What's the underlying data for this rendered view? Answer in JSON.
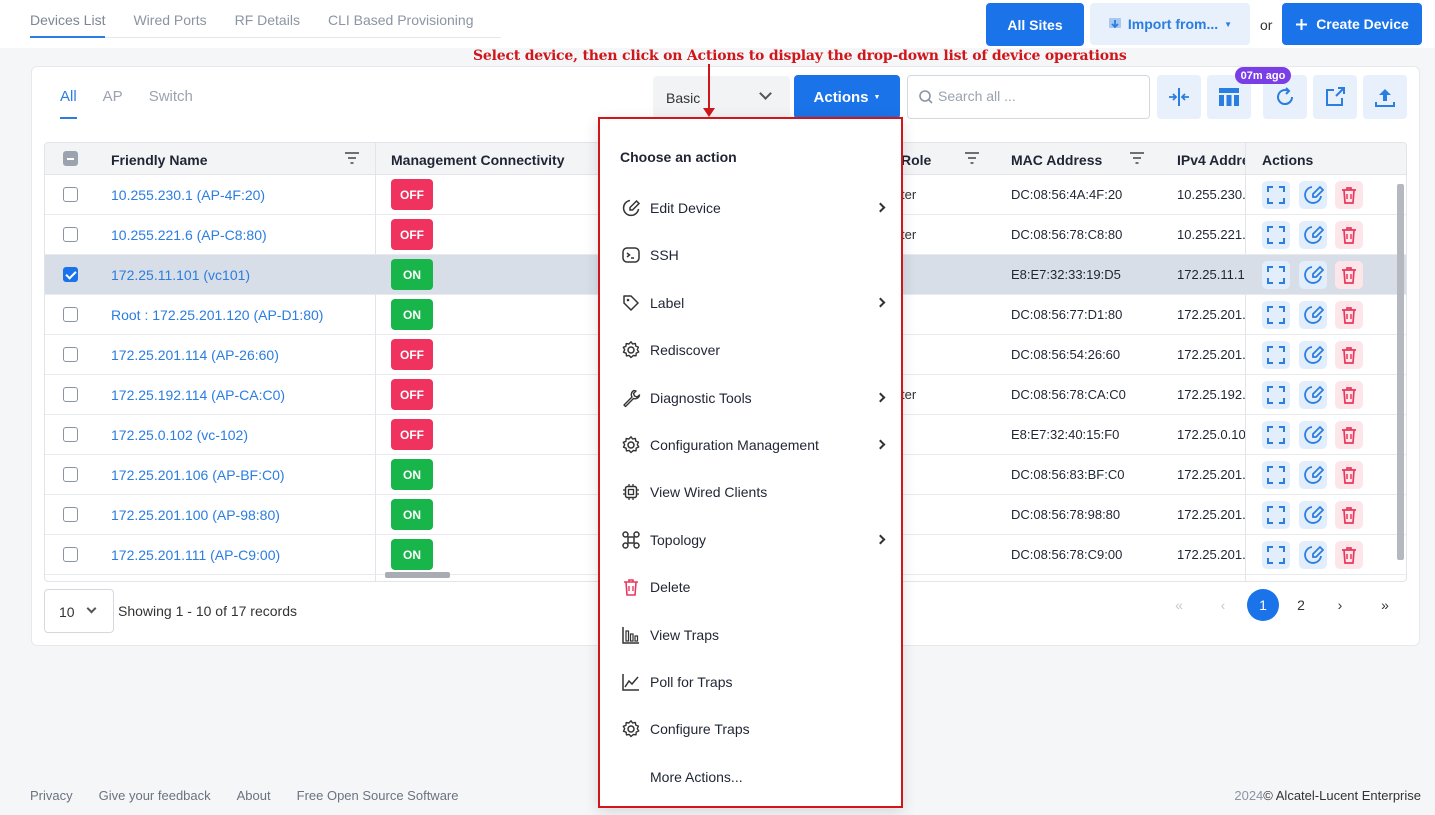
{
  "page_tabs": [
    "Devices List",
    "Wired Ports",
    "RF Details",
    "CLI Based Provisioning"
  ],
  "header": {
    "all_sites": "All Sites",
    "import_from": "Import from...",
    "or": "or",
    "create_device": "Create Device"
  },
  "annotation": "Select device, then click on Actions to display the drop-down list of device operations",
  "filter_tabs": [
    "All",
    "AP",
    "Switch"
  ],
  "toolbar": {
    "view_select": "Basic",
    "actions": "Actions",
    "search_placeholder": "Search all ...",
    "refresh_badge": "07m ago"
  },
  "table": {
    "headers": {
      "friendly_name": "Friendly Name",
      "management_connectivity": "Management Connectivity",
      "role": "Role",
      "mac_address": "MAC Address",
      "ipv4_address": "IPv4 Addre",
      "actions": "Actions"
    },
    "rows": [
      {
        "name": "10.255.230.1 (AP-4F:20)",
        "status": "OFF",
        "role": "ter",
        "mac": "DC:08:56:4A:4F:20",
        "ipv4": "10.255.230.",
        "checked": false
      },
      {
        "name": "10.255.221.6 (AP-C8:80)",
        "status": "OFF",
        "role": "ter",
        "mac": "DC:08:56:78:C8:80",
        "ipv4": "10.255.221.",
        "checked": false
      },
      {
        "name": "172.25.11.101 (vc101)",
        "status": "ON",
        "role": "",
        "mac": "E8:E7:32:33:19:D5",
        "ipv4": "172.25.11.1",
        "checked": true
      },
      {
        "name": "Root : 172.25.201.120 (AP-D1:80)",
        "status": "ON",
        "role": "",
        "mac": "DC:08:56:77:D1:80",
        "ipv4": "172.25.201.",
        "checked": false
      },
      {
        "name": "172.25.201.114 (AP-26:60)",
        "status": "OFF",
        "role": "",
        "mac": "DC:08:56:54:26:60",
        "ipv4": "172.25.201.",
        "checked": false
      },
      {
        "name": "172.25.192.114 (AP-CA:C0)",
        "status": "OFF",
        "role": "ter",
        "mac": "DC:08:56:78:CA:C0",
        "ipv4": "172.25.192.",
        "checked": false
      },
      {
        "name": "172.25.0.102 (vc-102)",
        "status": "OFF",
        "role": "",
        "mac": "E8:E7:32:40:15:F0",
        "ipv4": "172.25.0.10",
        "checked": false
      },
      {
        "name": "172.25.201.106 (AP-BF:C0)",
        "status": "ON",
        "role": "",
        "mac": "DC:08:56:83:BF:C0",
        "ipv4": "172.25.201.",
        "checked": false
      },
      {
        "name": "172.25.201.100 (AP-98:80)",
        "status": "ON",
        "role": "",
        "mac": "DC:08:56:78:98:80",
        "ipv4": "172.25.201.",
        "checked": false
      },
      {
        "name": "172.25.201.111 (AP-C9:00)",
        "status": "ON",
        "role": "",
        "mac": "DC:08:56:78:C9:00",
        "ipv4": "172.25.201.",
        "checked": false
      }
    ]
  },
  "pagination": {
    "page_size": "10",
    "records": "Showing 1 - 10 of 17 records",
    "pages": [
      "1",
      "2"
    ],
    "current": "1"
  },
  "dropdown": {
    "title": "Choose an action",
    "items": [
      {
        "label": "Edit Device",
        "icon": "edit-device-icon",
        "submenu": true
      },
      {
        "label": "SSH",
        "icon": "terminal-icon",
        "submenu": false
      },
      {
        "label": "Label",
        "icon": "tag-icon",
        "submenu": true
      },
      {
        "label": "Rediscover",
        "icon": "gear-icon",
        "submenu": false
      },
      {
        "label": "Diagnostic Tools",
        "icon": "wrench-icon",
        "submenu": true
      },
      {
        "label": "Configuration Management",
        "icon": "gear-icon",
        "submenu": true
      },
      {
        "label": "View Wired Clients",
        "icon": "chip-icon",
        "submenu": false
      },
      {
        "label": "Topology",
        "icon": "topology-icon",
        "submenu": true
      },
      {
        "label": "Delete",
        "icon": "trash-icon",
        "submenu": false
      },
      {
        "label": "View Traps",
        "icon": "bar-chart-icon",
        "submenu": false
      },
      {
        "label": "Poll for Traps",
        "icon": "line-chart-icon",
        "submenu": false
      },
      {
        "label": "Configure Traps",
        "icon": "gear-icon",
        "submenu": false
      },
      {
        "label": "More Actions...",
        "icon": "",
        "submenu": false
      }
    ]
  },
  "footer": {
    "links": [
      "Privacy",
      "Give your feedback",
      "About",
      "Free Open Source Software"
    ],
    "year": "2024",
    "copyright": "© Alcatel-Lucent Enterprise"
  },
  "colors": {
    "primary": "#1a73e8",
    "off": "#f0325f",
    "on": "#17b54a",
    "annotation": "#d0161a",
    "badge": "#7a3ee6"
  }
}
